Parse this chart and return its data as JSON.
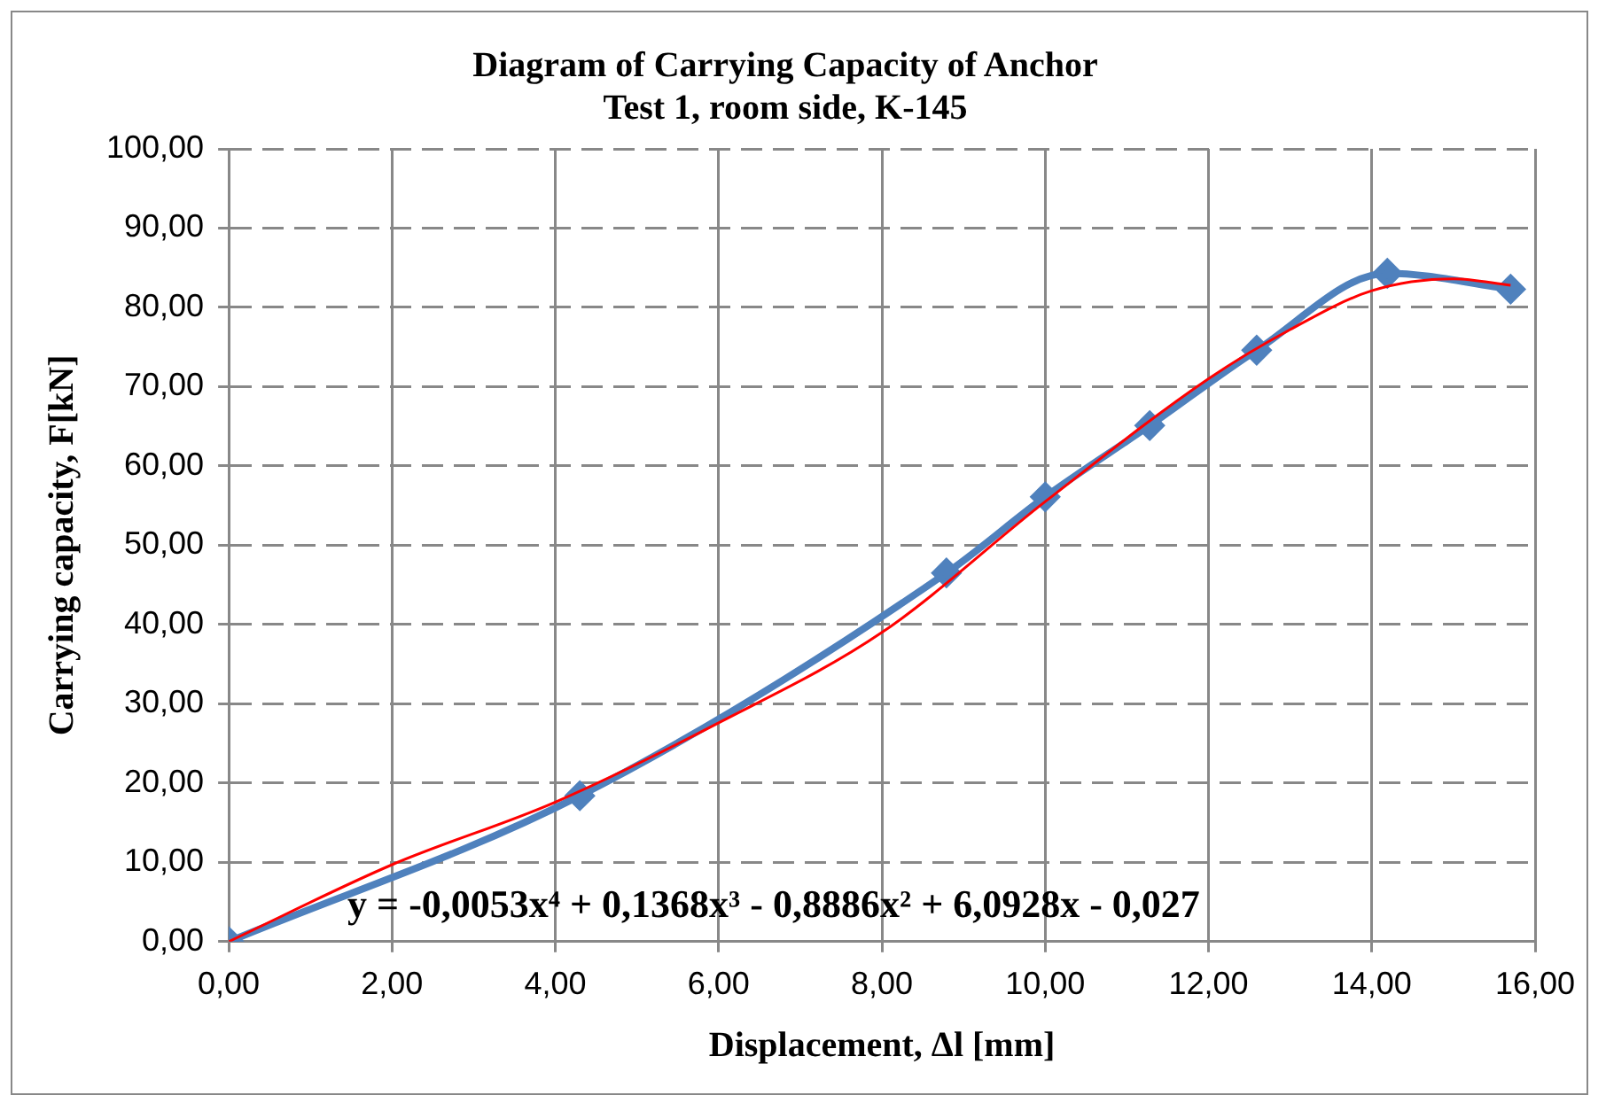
{
  "chart_data": {
    "type": "line",
    "title": "Diagram of Carrying Capacity of Anchor\nTest 1, room side, K-145",
    "xlabel": "Displacement, Δl [mm]",
    "ylabel": "Carrying capacity, F[kN]",
    "series": [
      {
        "color": "#4f81bd",
        "marker": "diamond",
        "x": [
          0,
          4.3,
          8.79,
          10,
          11.28,
          12.59,
          14.19,
          15.7
        ],
        "values": [
          0,
          18.4,
          46.5,
          56.1,
          65.1,
          74.6,
          84.3,
          82.3
        ]
      },
      {
        "color": "#ff0000",
        "marker": "none",
        "x": [
          0,
          2,
          4,
          6,
          8,
          10,
          12,
          13,
          14,
          15,
          15.7
        ],
        "values": [
          0,
          9.7,
          17.6,
          27.6,
          39.0,
          55.5,
          71.0,
          77.2,
          82.1,
          83.6,
          82.8
        ]
      }
    ],
    "xlim": [
      0,
      16
    ],
    "xticks": [
      {
        "value": 0,
        "label": "0,00"
      },
      {
        "value": 2,
        "label": "2,00"
      },
      {
        "value": 4,
        "label": "4,00"
      },
      {
        "value": 6,
        "label": "6,00"
      },
      {
        "value": 8,
        "label": "8,00"
      },
      {
        "value": 10,
        "label": "10,00"
      },
      {
        "value": 12,
        "label": "12,00"
      },
      {
        "value": 14,
        "label": "14,00"
      },
      {
        "value": 16,
        "label": "16,00"
      }
    ],
    "ylim": [
      0,
      100
    ],
    "yticks": [
      {
        "value": 0,
        "label": "0,00"
      },
      {
        "value": 10,
        "label": "10,00"
      },
      {
        "value": 20,
        "label": "20,00"
      },
      {
        "value": 30,
        "label": "30,00"
      },
      {
        "value": 40,
        "label": "40,00"
      },
      {
        "value": 50,
        "label": "50,00"
      },
      {
        "value": 60,
        "label": "60,00"
      },
      {
        "value": 70,
        "label": "70,00"
      },
      {
        "value": 80,
        "label": "80,00"
      },
      {
        "value": 90,
        "label": "90,00"
      },
      {
        "value": 100,
        "label": "100,00"
      }
    ],
    "grid": true,
    "legend": false,
    "annotations": [
      "y = -0,0053x⁴ + 0,1368x³ - 0,8886x² + 6,0928x - 0,027"
    ]
  }
}
